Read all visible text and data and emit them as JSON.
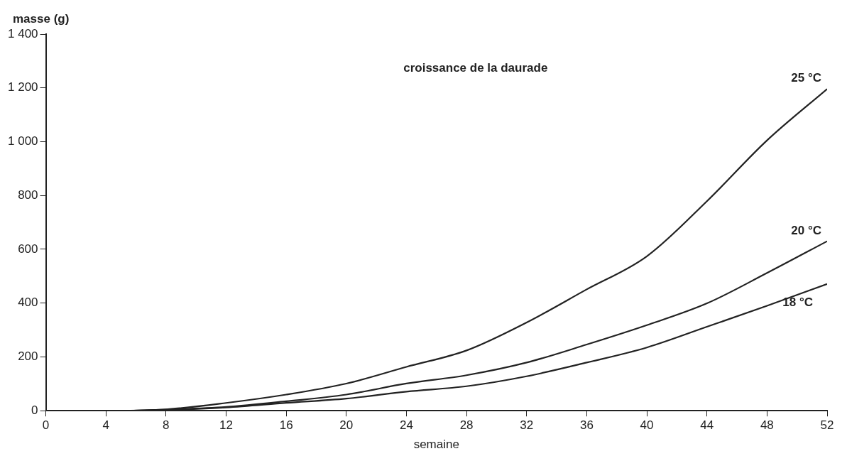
{
  "chart_data": {
    "type": "line",
    "title": "croissance de la daurade",
    "xlabel": "semaine",
    "ylabel": "masse (g)",
    "x": [
      0,
      4,
      5,
      8,
      12,
      16,
      20,
      24,
      28,
      32,
      36,
      40,
      44,
      48,
      52
    ],
    "series": [
      {
        "name": "25 °C",
        "color": "#222222",
        "values": [
          0,
          0,
          0,
          5,
          29,
          60,
          101,
          163,
          224,
          328,
          451,
          574,
          779,
          1005,
          1196
        ]
      },
      {
        "name": "20 °C",
        "color": "#222222",
        "values": [
          0,
          0,
          0,
          4,
          14,
          35,
          60,
          101,
          132,
          179,
          246,
          318,
          399,
          512,
          630
        ]
      },
      {
        "name": "18 °C",
        "color": "#222222",
        "values": [
          0,
          0,
          0,
          3,
          12,
          29,
          45,
          71,
          91,
          128,
          179,
          235,
          312,
          390,
          471
        ]
      }
    ],
    "xlim": [
      0,
      52
    ],
    "xticks": [
      0,
      4,
      8,
      12,
      16,
      20,
      24,
      28,
      32,
      36,
      40,
      44,
      48,
      52
    ],
    "ylim": [
      0,
      1400
    ],
    "yticks": [
      0,
      200,
      400,
      600,
      800,
      {
        "value": 1000,
        "label": "1 000"
      },
      {
        "value": 1200,
        "label": "1 200"
      },
      {
        "value": 1400,
        "label": "1 400"
      }
    ],
    "grid": false,
    "legend": false,
    "marker": "none",
    "line_style": "solid"
  }
}
